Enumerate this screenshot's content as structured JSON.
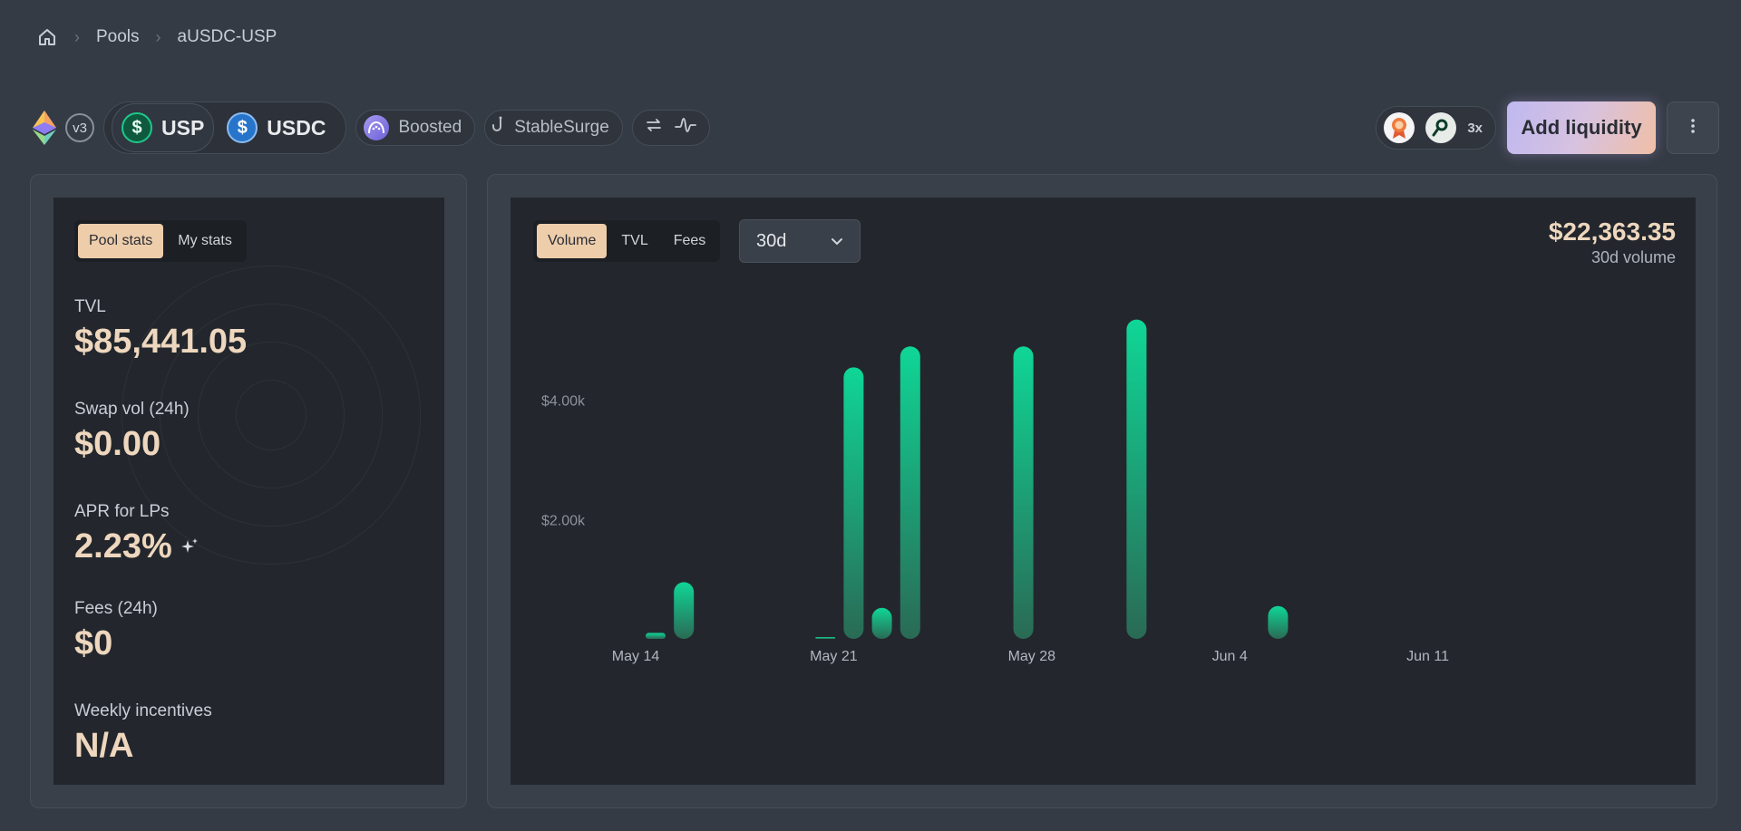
{
  "breadcrumb": {
    "items": [
      "Pools",
      "aUSDC-USP"
    ]
  },
  "header": {
    "version": "v3",
    "tokens": [
      "USP",
      "USDC"
    ],
    "token_symbols": [
      "$",
      "$"
    ],
    "chips": {
      "boosted": "Boosted",
      "hook": "StableSurge"
    },
    "multiplier": "3x",
    "add_liquidity": "Add liquidity"
  },
  "stats": {
    "tabs": [
      "Pool stats",
      "My stats"
    ],
    "items": [
      {
        "label": "TVL",
        "value": "$85,441.05"
      },
      {
        "label": "Swap vol (24h)",
        "value": "$0.00"
      },
      {
        "label": "APR for LPs",
        "value": "2.23%"
      },
      {
        "label": "Fees (24h)",
        "value": "$0"
      },
      {
        "label": "Weekly incentives",
        "value": "N/A"
      }
    ]
  },
  "chart_panel": {
    "tabs": [
      "Volume",
      "TVL",
      "Fees"
    ],
    "period": "30d",
    "total": "$22,363.35",
    "total_label": "30d volume"
  },
  "colors": {
    "accent": "#eecdaa",
    "bar_top": "#0fd696",
    "bar_bottom": "#2a6a55",
    "background": "#353b45"
  },
  "chart_data": {
    "type": "bar",
    "x_ticks": [
      "May 14",
      "May 21",
      "May 28",
      "Jun 4",
      "Jun 11"
    ],
    "y_ticks": [
      "$2.00k",
      "$4.00k"
    ],
    "ylim": [
      0,
      5800
    ],
    "x": [
      "May 14",
      "May 15",
      "May 19",
      "May 20",
      "May 21",
      "May 22",
      "May 23",
      "May 24",
      "May 25",
      "May 26",
      "May 27",
      "May 28",
      "May 29",
      "May 30",
      "May 31",
      "Jun 1",
      "Jun 2",
      "Jun 3",
      "Jun 4",
      "Jun 5"
    ],
    "values": [
      100,
      950,
      0,
      15,
      4550,
      520,
      4900,
      0,
      0,
      0,
      4900,
      0,
      0,
      0,
      5350,
      0,
      0,
      0,
      0,
      550
    ],
    "grid": false
  }
}
